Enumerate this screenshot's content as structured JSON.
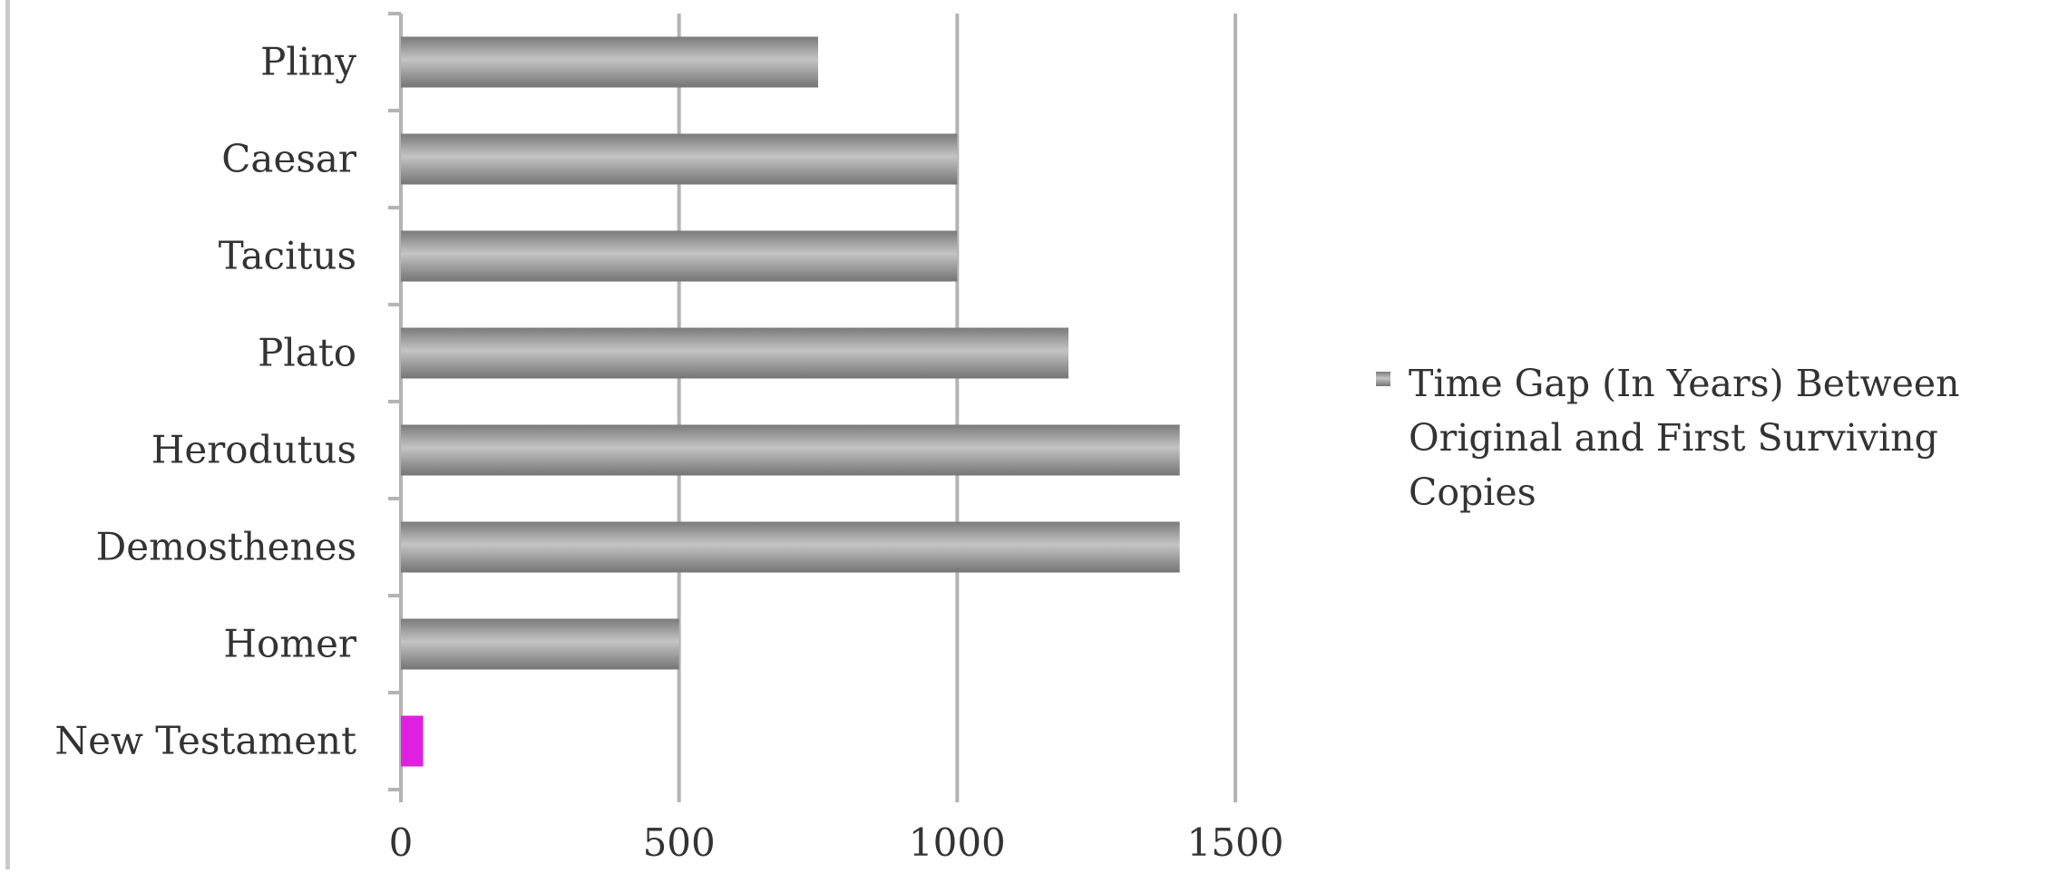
{
  "chart_data": {
    "type": "bar",
    "orientation": "horizontal",
    "categories": [
      "Pliny",
      "Caesar",
      "Tacitus",
      "Plato",
      "Herodutus",
      "Demosthenes",
      "Homer",
      "New Testament"
    ],
    "series": [
      {
        "name": "Time Gap (In Years) Between Original and First Surviving Copies",
        "values": [
          750,
          1000,
          1000,
          1200,
          1400,
          1400,
          500,
          40
        ],
        "colors": [
          "#8c8c8c",
          "#8c8c8c",
          "#8c8c8c",
          "#8c8c8c",
          "#8c8c8c",
          "#8c8c8c",
          "#8c8c8c",
          "#e020e0"
        ]
      }
    ],
    "legend": {
      "lines": [
        "Time Gap (In Years) Between",
        "Original and First Surviving",
        "Copies"
      ],
      "position": "right"
    },
    "xlim": [
      0,
      1500
    ],
    "xticks": [
      "0",
      "500",
      "1000",
      "1500"
    ],
    "xtick_values": [
      0,
      500,
      1000,
      1500
    ],
    "grid": true,
    "title": "",
    "xlabel": "",
    "ylabel": ""
  }
}
